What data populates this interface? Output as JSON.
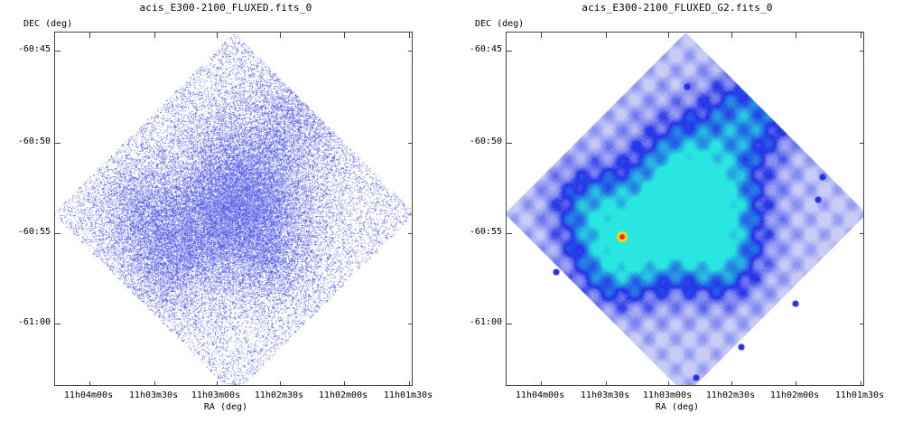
{
  "panels": [
    {
      "title": "acis_E300-2100_FLUXED.fits_0",
      "ylabel": "DEC (deg)",
      "xlabel": "RA (deg)",
      "yticks": [
        "-60:45",
        "-60:50",
        "-60:55",
        "-61:00"
      ],
      "xticks": [
        "11h04m00s",
        "11h03m30s",
        "11h03m00s",
        "11h02m30s",
        "11h02m00s",
        "11h01m30s"
      ],
      "render": "sparse-counts-blue"
    },
    {
      "title": "acis_E300-2100_FLUXED_G2.fits_0",
      "ylabel": "DEC (deg)",
      "xlabel": "RA (deg)",
      "yticks": [
        "-60:45",
        "-60:50",
        "-60:55",
        "-61:00"
      ],
      "xticks": [
        "11h04m00s",
        "11h03m30s",
        "11h03m00s",
        "11h02m30s",
        "11h02m00s",
        "11h01m30s"
      ],
      "render": "smoothed-rainbow"
    }
  ],
  "colors": {
    "sparse": "#3b44e6",
    "smooth_low": "#c9cdf6",
    "smooth_mid": "#2230e8",
    "smooth_high": "#29e6e0",
    "peak": "#ff2000"
  }
}
